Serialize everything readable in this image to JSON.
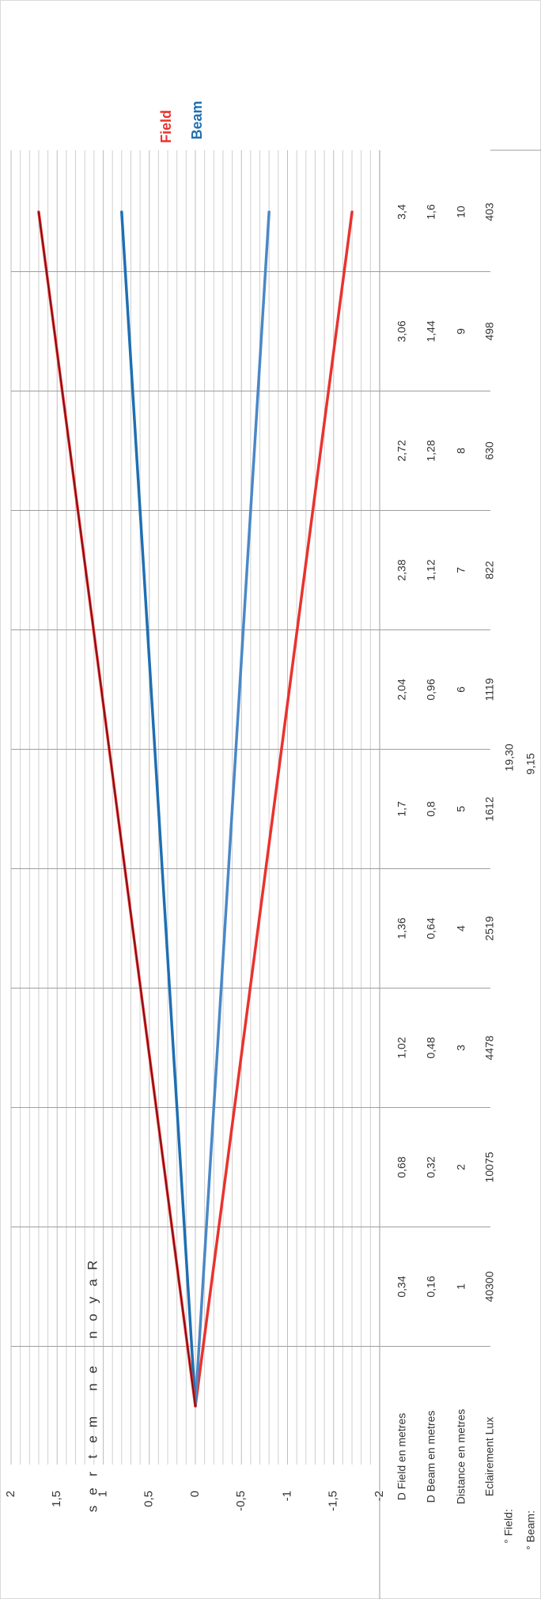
{
  "chart_data": {
    "type": "line",
    "legend": [
      "Field",
      "Beam"
    ],
    "legend_placement": "top",
    "y_axis_label": "Rayon en metres",
    "y_ticks": [
      "2",
      "1,5",
      "1",
      "0,5",
      "0",
      "-0,5",
      "-1",
      "-1,5",
      "-2"
    ],
    "ylim": [
      -2,
      2
    ],
    "xlim": [
      0,
      10
    ],
    "grid": true,
    "colors": {
      "field": "#e8332f",
      "field_upper": "#7a0b12",
      "beam": "#1f6fb2",
      "beam_lower": "#4a88c7"
    },
    "x": [
      0,
      1,
      2,
      3,
      4,
      5,
      6,
      7,
      8,
      9,
      10
    ],
    "series": [
      {
        "name": "Field",
        "upper": [
          0,
          0.17,
          0.34,
          0.51,
          0.68,
          0.85,
          1.02,
          1.19,
          1.36,
          1.53,
          1.7
        ],
        "lower": [
          0,
          -0.17,
          -0.34,
          -0.51,
          -0.68,
          -0.85,
          -1.02,
          -1.19,
          -1.36,
          -1.53,
          -1.7
        ]
      },
      {
        "name": "Beam",
        "upper": [
          0,
          0.08,
          0.16,
          0.24,
          0.32,
          0.4,
          0.48,
          0.56,
          0.64,
          0.72,
          0.8
        ],
        "lower": [
          0,
          -0.08,
          -0.16,
          -0.24,
          -0.32,
          -0.4,
          -0.48,
          -0.56,
          -0.64,
          -0.72,
          -0.8
        ]
      }
    ],
    "table": {
      "row_labels": [
        "D Field en metres",
        "D Beam en metres",
        "Distance en metres",
        "Eclairement Lux"
      ],
      "rows": [
        [
          "0,34",
          "0,68",
          "1,02",
          "1,36",
          "1,7",
          "2,04",
          "2,38",
          "2,72",
          "3,06",
          "3,4"
        ],
        [
          "0,16",
          "0,32",
          "0,48",
          "0,64",
          "0,8",
          "0,96",
          "1,12",
          "1,28",
          "1,44",
          "1,6"
        ],
        [
          "1",
          "2",
          "3",
          "4",
          "5",
          "6",
          "7",
          "8",
          "9",
          "10"
        ],
        [
          "40300",
          "10075",
          "4478",
          "2519",
          "1612",
          "1119",
          "822",
          "630",
          "498",
          "403"
        ]
      ]
    },
    "angles": {
      "field_label": "° Field:",
      "beam_label": "° Beam:",
      "field_value": "19,30",
      "beam_value": "9,15"
    }
  }
}
